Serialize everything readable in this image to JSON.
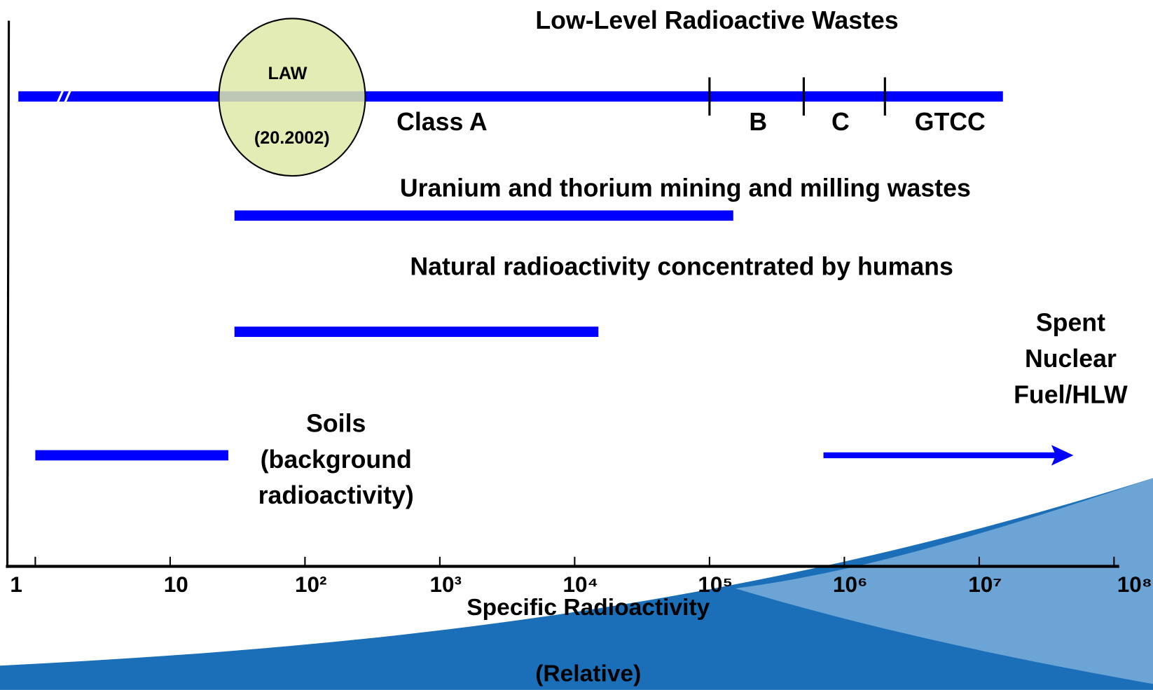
{
  "chart_data": {
    "type": "range",
    "xscale": "log",
    "color": "#0000ff",
    "xlim": [
      1,
      100000000
    ],
    "xticks": [
      1,
      10,
      {
        "value": 100,
        "label": "10²"
      },
      {
        "value": 1000,
        "label": "10³"
      },
      {
        "value": 10000,
        "label": "10⁴"
      },
      {
        "value": 100000,
        "label": "10⁵"
      },
      {
        "value": 1000000,
        "label": "10⁶"
      },
      {
        "value": 10000000,
        "label": "10⁷"
      },
      {
        "value": 100000000,
        "label": "10⁸"
      }
    ],
    "xlabel": [
      "Specific Radioactivity",
      "(Relative)"
    ],
    "series": [
      {
        "name": [
          "Low-Level Radioactive Wastes"
        ],
        "values": [
          1,
          15000000
        ]
      },
      {
        "name": [
          "Uranium and thorium mining and milling wastes"
        ],
        "values": [
          30,
          150000
        ]
      },
      {
        "name": [
          "Natural radioactivity concentrated by humans"
        ],
        "values": [
          30,
          15000
        ]
      },
      {
        "name": [
          "Soils",
          "(background",
          "radioactivity)"
        ],
        "values": [
          1,
          27
        ]
      },
      {
        "name": [
          "Spent",
          "Nuclear",
          "Fuel/HLW"
        ],
        "values": [
          700000,
          50000000
        ]
      }
    ],
    "classes": {
      "labels": [
        "Class A",
        "B",
        "C",
        "GTCC"
      ],
      "boundaries": [
        100000,
        500000,
        2000000
      ]
    },
    "law": {
      "labels": [
        "LAW",
        "(20.2002)"
      ],
      "values": [
        23,
        280
      ]
    }
  }
}
